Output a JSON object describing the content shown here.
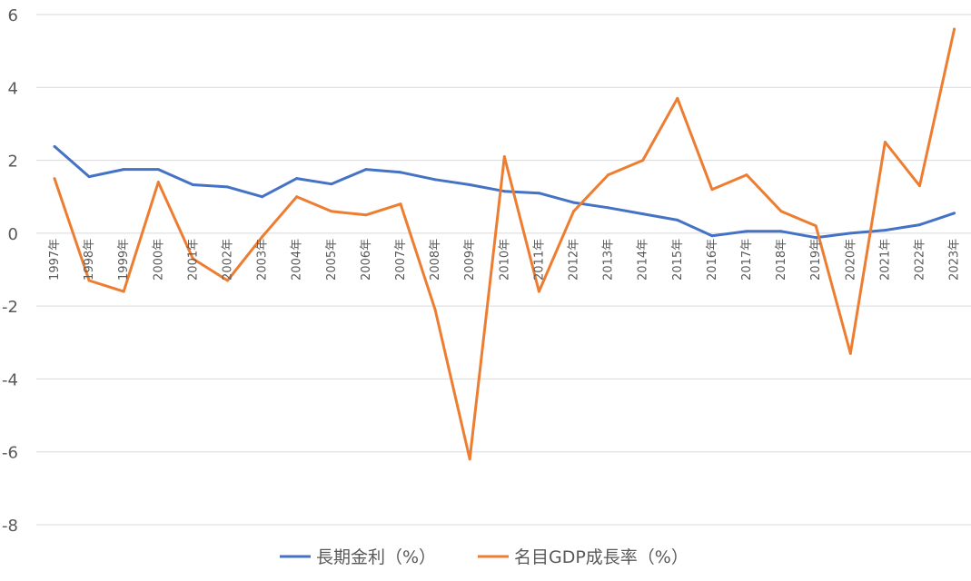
{
  "chart_data": {
    "type": "line",
    "title": "",
    "xlabel": "",
    "ylabel": "",
    "ylim": [
      -8,
      6
    ],
    "yticks": [
      6,
      4,
      2,
      0,
      -2,
      -4,
      -6,
      -8
    ],
    "ytick_labels": [
      "6",
      "4",
      "2",
      "0",
      "-2",
      "-4",
      "-6",
      "-8"
    ],
    "grid": true,
    "legend_position": "bottom",
    "categories": [
      "1997年",
      "1998年",
      "1999年",
      "2000年",
      "2001年",
      "2002年",
      "2003年",
      "2004年",
      "2005年",
      "2006年",
      "2007年",
      "2008年",
      "2009年",
      "2010年",
      "2011年",
      "2012年",
      "2013年",
      "2014年",
      "2015年",
      "2016年",
      "2017年",
      "2018年",
      "2019年",
      "2020年",
      "2021年",
      "2022年",
      "2023年"
    ],
    "series": [
      {
        "name": "長期金利（%）",
        "color": "#4472C4",
        "values": [
          2.38,
          1.55,
          1.75,
          1.75,
          1.33,
          1.27,
          1.0,
          1.5,
          1.35,
          1.75,
          1.67,
          1.47,
          1.33,
          1.15,
          1.1,
          0.84,
          0.7,
          0.53,
          0.36,
          -0.07,
          0.05,
          0.05,
          -0.12,
          0.0,
          0.08,
          0.23,
          0.55
        ]
      },
      {
        "name": "名目GDP成長率（%）",
        "color": "#ED7D31",
        "values": [
          1.5,
          -1.3,
          -1.6,
          1.4,
          -0.7,
          -1.3,
          -0.1,
          1.0,
          0.6,
          0.5,
          0.8,
          -2.1,
          -6.2,
          2.1,
          -1.6,
          0.6,
          1.6,
          2.0,
          3.7,
          1.2,
          1.6,
          0.6,
          0.2,
          -3.3,
          2.5,
          1.3,
          5.6
        ]
      }
    ]
  }
}
